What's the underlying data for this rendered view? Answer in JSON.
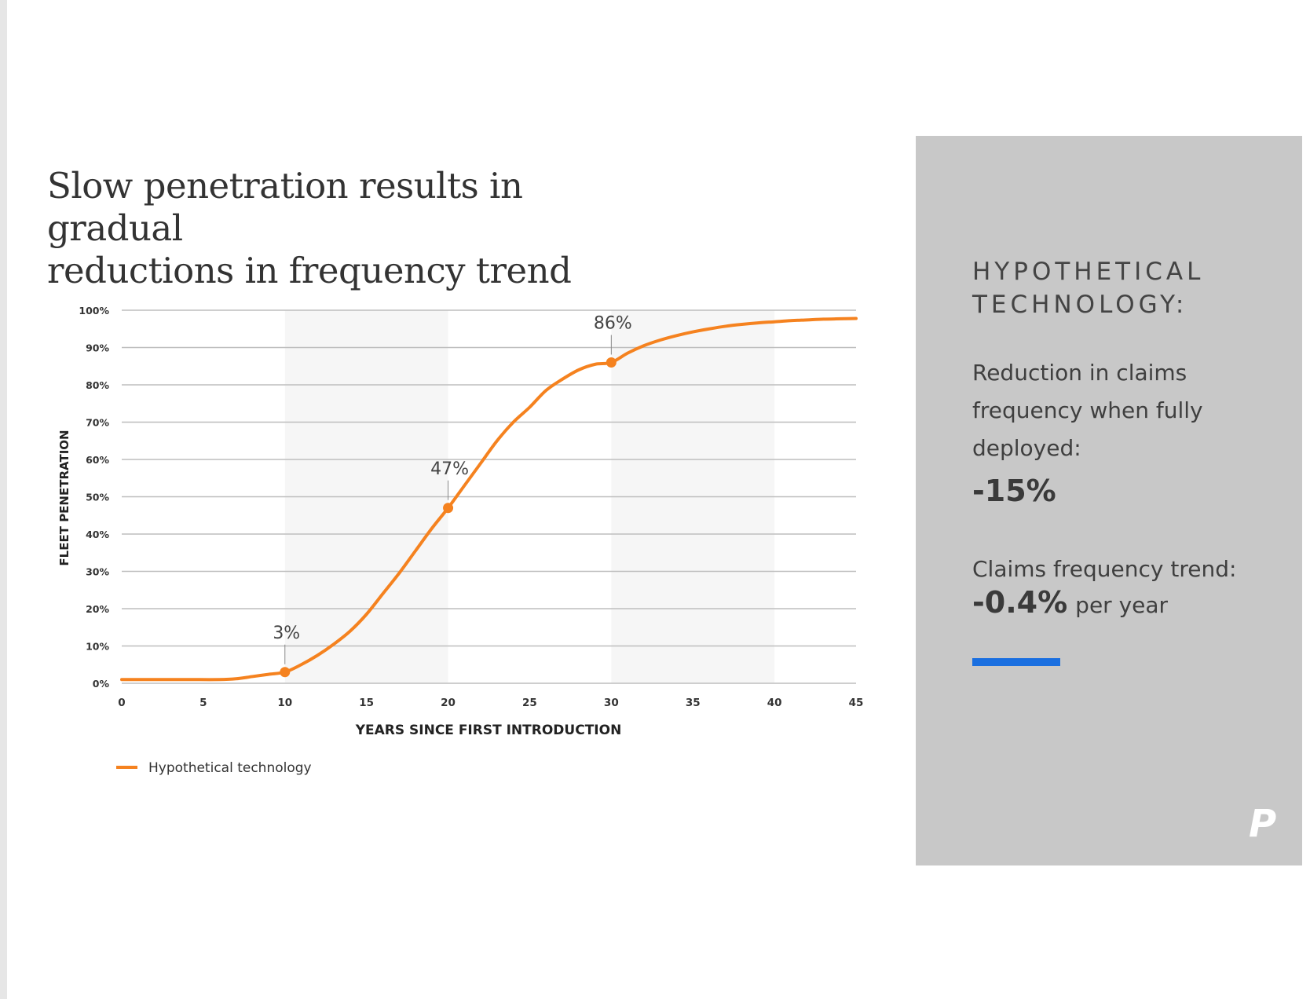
{
  "title": {
    "line1": "Slow penetration results in gradual",
    "line2": "reductions in frequency trend"
  },
  "colors": {
    "series": "#F5821F",
    "accent_bar": "#1A6FE0",
    "sidebar_bg": "#C8C8C8",
    "grid": "#BDBDBD"
  },
  "chart_data": {
    "type": "line",
    "xlabel": "YEARS SINCE FIRST INTRODUCTION",
    "ylabel": "FLEET PENETRATION",
    "xlim": [
      0,
      45
    ],
    "ylim": [
      0,
      100
    ],
    "x_ticks": [
      "0",
      "5",
      "10",
      "15",
      "20",
      "25",
      "30",
      "35",
      "40",
      "45"
    ],
    "y_ticks": [
      "0%",
      "10%",
      "20%",
      "30%",
      "40%",
      "50%",
      "60%",
      "70%",
      "80%",
      "90%",
      "100%"
    ],
    "grid": true,
    "legend_position": "bottom-left",
    "series": [
      {
        "name": "Hypothetical technology",
        "x": [
          0,
          2,
          4,
          6,
          7,
          8,
          9,
          10,
          11,
          12,
          13,
          14,
          15,
          16,
          17,
          18,
          19,
          20,
          21,
          22,
          23,
          24,
          25,
          26,
          27,
          28,
          29,
          30,
          31,
          32,
          33,
          34,
          35,
          36,
          37,
          38,
          39,
          40,
          41,
          42,
          43,
          44,
          45
        ],
        "y": [
          1,
          1,
          1,
          1,
          1.2,
          1.8,
          2.4,
          3,
          5,
          7.5,
          10.5,
          14,
          18.5,
          24,
          29.5,
          35.5,
          41.5,
          47,
          53,
          59,
          65,
          70,
          74,
          78.5,
          81.5,
          84,
          85.5,
          86,
          88.5,
          90.5,
          92,
          93.2,
          94.2,
          95,
          95.7,
          96.2,
          96.6,
          96.9,
          97.2,
          97.4,
          97.6,
          97.7,
          97.8
        ]
      }
    ],
    "annotations": [
      {
        "x": 10,
        "y": 3,
        "label": "3%"
      },
      {
        "x": 20,
        "y": 47,
        "label": "47%"
      },
      {
        "x": 30,
        "y": 86,
        "label": "86%"
      }
    ]
  },
  "sidebar": {
    "heading_line1": "HYPOTHETICAL",
    "heading_line2": "TECHNOLOGY:",
    "reduction_label": "Reduction in claims frequency when fully deployed:",
    "reduction_value": "-15%",
    "trend_label": "Claims frequency trend:",
    "trend_value": "-0.4%",
    "trend_unit": "per year",
    "logo": "P"
  }
}
